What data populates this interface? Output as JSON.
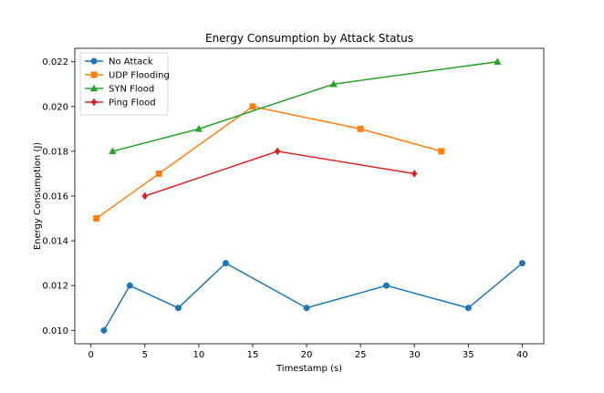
{
  "chart_data": {
    "type": "line",
    "title": "Energy Consumption by Attack Status",
    "xlabel": "Timestamp (s)",
    "ylabel": "Energy Consumption (J)",
    "xlim": [
      -1.5,
      42
    ],
    "ylim": [
      0.0094,
      0.0226
    ],
    "xticks": [
      0,
      5,
      10,
      15,
      20,
      25,
      30,
      35,
      40
    ],
    "xtick_labels": [
      "0",
      "5",
      "10",
      "15",
      "20",
      "25",
      "30",
      "35",
      "40"
    ],
    "yticks": [
      0.01,
      0.012,
      0.014,
      0.016,
      0.018,
      0.02,
      0.022
    ],
    "ytick_labels": [
      "0.010",
      "0.012",
      "0.014",
      "0.016",
      "0.018",
      "0.020",
      "0.022"
    ],
    "grid": false,
    "legend_position": "top-left",
    "series": [
      {
        "name": "No Attack",
        "color": "#1f77b4",
        "marker": "circle",
        "x": [
          1.2,
          3.6,
          8.1,
          12.5,
          20.0,
          27.4,
          35.0,
          40.0
        ],
        "y": [
          0.01,
          0.012,
          0.011,
          0.013,
          0.011,
          0.012,
          0.011,
          0.013
        ]
      },
      {
        "name": "UDP Flooding",
        "color": "#ff7f0e",
        "marker": "square",
        "x": [
          0.5,
          6.3,
          15.0,
          25.0,
          32.5
        ],
        "y": [
          0.015,
          0.017,
          0.02,
          0.019,
          0.018
        ]
      },
      {
        "name": "SYN Flood",
        "color": "#2ca02c",
        "marker": "triangle",
        "x": [
          2.0,
          10.0,
          22.5,
          37.7
        ],
        "y": [
          0.018,
          0.019,
          0.021,
          0.022
        ]
      },
      {
        "name": "Ping Flood",
        "color": "#d62728",
        "marker": "diamond",
        "x": [
          5.0,
          17.3,
          30.0
        ],
        "y": [
          0.016,
          0.018,
          0.017
        ]
      }
    ]
  }
}
